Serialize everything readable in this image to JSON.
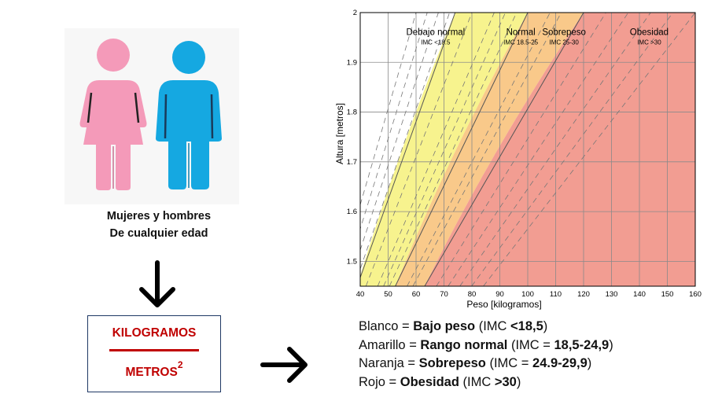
{
  "caption": {
    "line1": "Mujeres y hombres",
    "line2": "De cualquier edad"
  },
  "formula": {
    "numerator": "KILOGRAMOS",
    "denominator": "METROS",
    "exponent": "2"
  },
  "colors": {
    "white": "#ffffff",
    "yellow": "#f7f38e",
    "orange": "#f9c98a",
    "red": "#f29d92",
    "pink_figure": "#f49ab9",
    "blue_figure": "#15a8e1",
    "formula_red": "#c00000"
  },
  "chart_data": {
    "type": "area",
    "title": "",
    "xlabel": "Peso [kilogramos]",
    "ylabel": "Altura [metros]",
    "xlim": [
      40,
      160
    ],
    "ylim": [
      1.45,
      2.0
    ],
    "x_ticks": [
      40,
      50,
      60,
      70,
      80,
      90,
      100,
      110,
      120,
      130,
      140,
      150,
      160
    ],
    "y_ticks": [
      1.5,
      1.6,
      1.7,
      1.8,
      1.9,
      2
    ],
    "grid": true,
    "series": [
      {
        "name": "Debajo normal",
        "sub": "IMC <18.5",
        "bmi_min": 0,
        "bmi_max": 18.5,
        "color": "#ffffff"
      },
      {
        "name": "Normal",
        "sub": "IMC 18.5-25",
        "bmi_min": 18.5,
        "bmi_max": 25,
        "color": "#f7f38e"
      },
      {
        "name": "Sobrepeso",
        "sub": "IMC 25-30",
        "bmi_min": 25,
        "bmi_max": 30,
        "color": "#f9c98a"
      },
      {
        "name": "Obesidad",
        "sub": "IMC >30",
        "bmi_min": 30,
        "bmi_max": 999,
        "color": "#f29d92"
      }
    ],
    "dashed_bmi_lines": [
      15,
      16,
      17,
      18,
      20,
      22,
      23,
      24,
      27,
      28,
      32,
      34,
      36,
      38,
      40
    ]
  },
  "legend": [
    {
      "color_word": "Blanco",
      "eq": " = ",
      "category": "Bajo peso",
      "open": " (IMC ",
      "range": "<18,5",
      "close": ")"
    },
    {
      "color_word": "Amarillo",
      "eq": " = ",
      "category": "Rango normal",
      "open": " (IMC = ",
      "range": "18,5-24,9",
      "close": ")"
    },
    {
      "color_word": "Naranja",
      "eq": " = ",
      "category": "Sobrepeso",
      "open": " (IMC = ",
      "range": "24.9-29,9",
      "close": ")"
    },
    {
      "color_word": "Rojo",
      "eq": " = ",
      "category": "Obesidad",
      "open": " (IMC ",
      "range": ">30",
      "close": ")"
    }
  ]
}
